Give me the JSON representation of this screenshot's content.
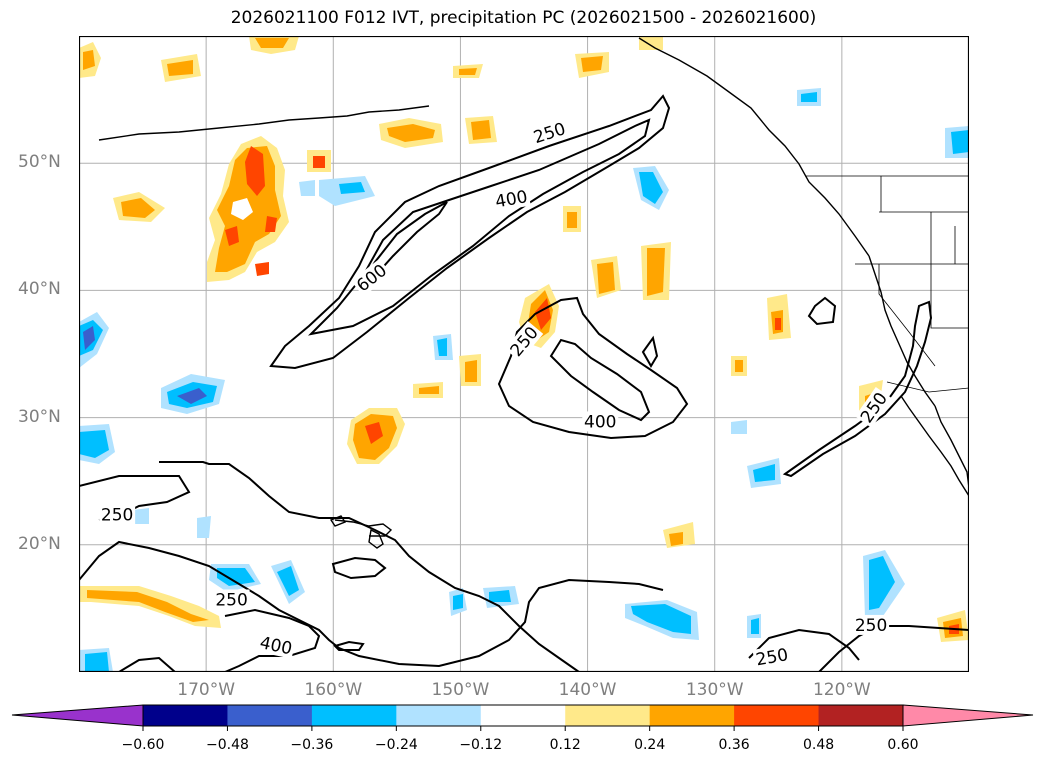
{
  "title": "2026021100 F012 IVT, precipitation PC (2026021500 - 2026021600)",
  "map": {
    "lat_labels": [
      {
        "value": 50,
        "text": "50°N"
      },
      {
        "value": 40,
        "text": "40°N"
      },
      {
        "value": 30,
        "text": "30°N"
      },
      {
        "value": 20,
        "text": "20°N"
      }
    ],
    "lon_labels": [
      {
        "value": -170,
        "text": "170°W"
      },
      {
        "value": -160,
        "text": "160°W"
      },
      {
        "value": -150,
        "text": "150°W"
      },
      {
        "value": -140,
        "text": "140°W"
      },
      {
        "value": -130,
        "text": "130°W"
      },
      {
        "value": -120,
        "text": "120°W"
      }
    ],
    "ivt_contour_labels": [
      {
        "text": "250",
        "lon": -143,
        "lat": 52.4,
        "rot": -18
      },
      {
        "text": "400",
        "lon": -146,
        "lat": 47.2,
        "rot": -10
      },
      {
        "text": "600",
        "lon": -157,
        "lat": 41,
        "rot": -38
      },
      {
        "text": "250",
        "lon": -145,
        "lat": 36,
        "rot": -50
      },
      {
        "text": "400",
        "lon": -139,
        "lat": 29.7,
        "rot": 0
      },
      {
        "text": "250",
        "lon": -177,
        "lat": 22.4,
        "rot": 0
      },
      {
        "text": "250",
        "lon": -168,
        "lat": 15.7,
        "rot": 0
      },
      {
        "text": "400",
        "lon": -164.5,
        "lat": 12.1,
        "rot": 12
      },
      {
        "text": "250",
        "lon": -125.5,
        "lat": 11.2,
        "rot": -10
      },
      {
        "text": "250",
        "lon": -117.7,
        "lat": 13.7,
        "rot": 0
      },
      {
        "text": "250",
        "lon": -117.5,
        "lat": 30.8,
        "rot": -55
      }
    ]
  },
  "colorbar": {
    "ticks": [
      "−0.60",
      "−0.48",
      "−0.36",
      "−0.24",
      "−0.12",
      "0.12",
      "0.24",
      "0.36",
      "0.48",
      "0.60"
    ],
    "colors": [
      "#9932cc",
      "#00008b",
      "#3a5fcd",
      "#00bfff",
      "#b0e2ff",
      "#ffffff",
      "#ffe98a",
      "#ffa500",
      "#ff4500",
      "#b22222",
      "#ff89a8",
      "#ff89a8"
    ]
  }
}
